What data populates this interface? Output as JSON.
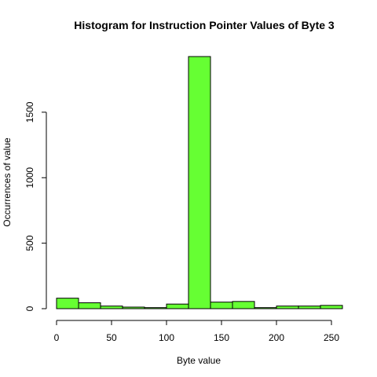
{
  "chart_data": {
    "type": "bar",
    "title": "Histogram for Instruction Pointer Values of Byte 3",
    "xlabel": "Byte value",
    "ylabel": "Occurrences of value",
    "bins": [
      {
        "start": 0,
        "end": 20,
        "count": 80
      },
      {
        "start": 20,
        "end": 40,
        "count": 45
      },
      {
        "start": 40,
        "end": 60,
        "count": 20
      },
      {
        "start": 60,
        "end": 80,
        "count": 12
      },
      {
        "start": 80,
        "end": 100,
        "count": 8
      },
      {
        "start": 100,
        "end": 120,
        "count": 35
      },
      {
        "start": 120,
        "end": 140,
        "count": 1925
      },
      {
        "start": 140,
        "end": 160,
        "count": 50
      },
      {
        "start": 160,
        "end": 180,
        "count": 55
      },
      {
        "start": 180,
        "end": 200,
        "count": 8
      },
      {
        "start": 200,
        "end": 220,
        "count": 20
      },
      {
        "start": 220,
        "end": 240,
        "count": 20
      },
      {
        "start": 240,
        "end": 260,
        "count": 25
      }
    ],
    "xlim": [
      0,
      260
    ],
    "ylim": [
      0,
      1925
    ],
    "xticks": [
      0,
      50,
      100,
      150,
      200,
      250
    ],
    "yticks": [
      0,
      500,
      1000,
      1500
    ],
    "x_tick_labels": [
      "0",
      "50",
      "100",
      "150",
      "200",
      "250"
    ],
    "y_tick_labels": [
      "0",
      "500",
      "1000",
      "1500"
    ],
    "bar_color": "#66ff33",
    "bar_border_color": "#000000",
    "grid": false,
    "legend": "none"
  }
}
